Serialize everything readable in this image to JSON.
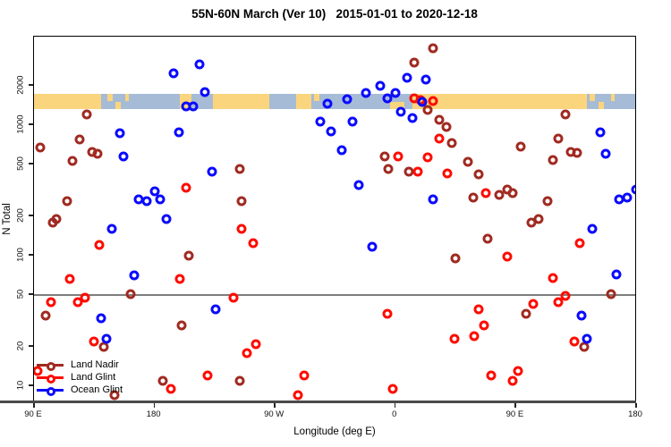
{
  "title": "55N-60N March (Ver 10)   2015-01-01 to 2020-12-18",
  "axes": {
    "x_label": "Longitude (deg E)",
    "y_label": "N Total",
    "x_ticks": [
      {
        "value": 90,
        "label": "90 E"
      },
      {
        "value": 180,
        "label": "180"
      },
      {
        "value": 270,
        "label": "90 W"
      },
      {
        "value": 360,
        "label": "0"
      },
      {
        "value": 450,
        "label": "90 E"
      },
      {
        "value": 540,
        "label": "180"
      }
    ],
    "y_ticks": [
      2000,
      1000,
      500,
      200,
      100,
      50,
      20,
      10
    ],
    "y_scale": "log",
    "x_range": [
      90,
      540
    ]
  },
  "reference_line_y": 50,
  "map_band": {
    "land_color": "#FBD57E",
    "ocean_color": "#A6BBD6",
    "segments": [
      {
        "from": 90,
        "to": 140,
        "type": "land"
      },
      {
        "from": 140,
        "to": 199,
        "type": "ocean"
      },
      {
        "from": 199,
        "to": 208,
        "type": "land"
      },
      {
        "from": 208,
        "to": 224,
        "type": "ocean"
      },
      {
        "from": 224,
        "to": 266,
        "type": "land"
      },
      {
        "from": 266,
        "to": 286,
        "type": "ocean"
      },
      {
        "from": 286,
        "to": 297,
        "type": "land"
      },
      {
        "from": 297,
        "to": 373,
        "type": "ocean"
      },
      {
        "from": 373,
        "to": 503,
        "type": "land"
      },
      {
        "from": 503,
        "to": 540,
        "type": "ocean"
      }
    ],
    "specks": [
      {
        "from": 145,
        "to": 149,
        "type": "land",
        "pos": "top"
      },
      {
        "from": 151,
        "to": 155,
        "type": "land",
        "pos": "bottom"
      },
      {
        "from": 158,
        "to": 161,
        "type": "land",
        "pos": "top"
      },
      {
        "from": 299,
        "to": 303,
        "type": "land",
        "pos": "top"
      },
      {
        "from": 356,
        "to": 367,
        "type": "land",
        "pos": "bottom"
      },
      {
        "from": 505,
        "to": 509,
        "type": "land",
        "pos": "top"
      },
      {
        "from": 512,
        "to": 516,
        "type": "land",
        "pos": "bottom"
      },
      {
        "from": 521,
        "to": 524,
        "type": "land",
        "pos": "top"
      }
    ]
  },
  "legend": [
    {
      "label": "Land Nadir",
      "color": "#A02A21"
    },
    {
      "label": "Land Glint",
      "color": "#FF0B00"
    },
    {
      "label": "Ocean Glint",
      "color": "#0A0AFF"
    }
  ],
  "chart_data": {
    "type": "scatter",
    "x_axis": "Longitude (deg E), wrapped axis from 90E eastward to 180 (values 90-540)",
    "y_axis": "N Total (log scale)",
    "ylim": [
      7.4,
      4800
    ],
    "series": [
      {
        "name": "Land Nadir",
        "color": "#A02A21",
        "points": [
          [
            129.5,
            1200
          ],
          [
            124,
            780
          ],
          [
            95,
            670
          ],
          [
            133.5,
            620
          ],
          [
            137.5,
            600
          ],
          [
            388,
            3900
          ],
          [
            374,
            3000
          ],
          [
            384,
            1300
          ],
          [
            393,
            1100
          ],
          [
            398,
            970
          ],
          [
            402,
            730
          ],
          [
            422,
            420
          ],
          [
            418,
            280
          ],
          [
            438,
            290
          ],
          [
            444,
            320
          ],
          [
            448,
            300
          ],
          [
            474,
            260
          ],
          [
            462,
            180
          ],
          [
            467,
            190
          ],
          [
            355,
            460
          ],
          [
            370,
            440
          ],
          [
            414,
            520
          ],
          [
            352,
            580
          ],
          [
            478,
            540
          ],
          [
            487,
            1200
          ],
          [
            482,
            790
          ],
          [
            454,
            680
          ],
          [
            491,
            620
          ],
          [
            496,
            610
          ],
          [
            119,
            530
          ],
          [
            244,
            460
          ],
          [
            115,
            260
          ],
          [
            104,
            180
          ],
          [
            107,
            190
          ],
          [
            245,
            260
          ],
          [
            206,
            100
          ],
          [
            405,
            96
          ],
          [
            429,
            135
          ],
          [
            162,
            51
          ],
          [
            99,
            35
          ],
          [
            142,
            20
          ],
          [
            200,
            29
          ],
          [
            186,
            11
          ],
          [
            150,
            8.5
          ],
          [
            244,
            11
          ],
          [
            521,
            51
          ],
          [
            458,
            36
          ],
          [
            501,
            20
          ]
        ]
      },
      {
        "name": "Land Glint",
        "color": "#FF0B00",
        "points": [
          [
            374,
            1600
          ],
          [
            379,
            1550
          ],
          [
            388,
            1520
          ],
          [
            393,
            790
          ],
          [
            384,
            570
          ],
          [
            362,
            580
          ],
          [
            204,
            330
          ],
          [
            139,
            120
          ],
          [
            245,
            160
          ],
          [
            254,
            125
          ],
          [
            117,
            66
          ],
          [
            199,
            66
          ],
          [
            377,
            440
          ],
          [
            399,
            430
          ],
          [
            428,
            300
          ],
          [
            498,
            125
          ],
          [
            444,
            98
          ],
          [
            478,
            67
          ],
          [
            103,
            44
          ],
          [
            123,
            44
          ],
          [
            128,
            48
          ],
          [
            239,
            48
          ],
          [
            135,
            22
          ],
          [
            256,
            21
          ],
          [
            249,
            18
          ],
          [
            220,
            12
          ],
          [
            192,
            9.5
          ],
          [
            292,
            12
          ],
          [
            287,
            8.5
          ],
          [
            93,
            13
          ],
          [
            354,
            36
          ],
          [
            422,
            39
          ],
          [
            426,
            29
          ],
          [
            419,
            24
          ],
          [
            404,
            23
          ],
          [
            494,
            22
          ],
          [
            463,
            43
          ],
          [
            482,
            44
          ],
          [
            487,
            49
          ],
          [
            432,
            12
          ],
          [
            452,
            13
          ],
          [
            448,
            11
          ],
          [
            358,
            9.5
          ]
        ]
      },
      {
        "name": "Ocean Glint",
        "color": "#0A0AFF",
        "points": [
          [
            194,
            2500
          ],
          [
            214,
            2900
          ],
          [
            218,
            1800
          ],
          [
            204,
            1400
          ],
          [
            209,
            1400
          ],
          [
            154,
            870
          ],
          [
            198,
            880
          ],
          [
            157,
            580
          ],
          [
            369,
            2300
          ],
          [
            383,
            2250
          ],
          [
            349,
            2000
          ],
          [
            338,
            1760
          ],
          [
            324,
            1570
          ],
          [
            354,
            1600
          ],
          [
            360,
            1760
          ],
          [
            380,
            1500
          ],
          [
            364,
            1260
          ],
          [
            373,
            1140
          ],
          [
            328,
            1070
          ],
          [
            320,
            640
          ],
          [
            304,
            1060
          ],
          [
            312,
            900
          ],
          [
            309,
            1460
          ],
          [
            513,
            880
          ],
          [
            517,
            600
          ],
          [
            223,
            440
          ],
          [
            168,
            270
          ],
          [
            174,
            260
          ],
          [
            180,
            310
          ],
          [
            184,
            270
          ],
          [
            189,
            190
          ],
          [
            148,
            160
          ],
          [
            165,
            71
          ],
          [
            333,
            350
          ],
          [
            388,
            270
          ],
          [
            527,
            270
          ],
          [
            533,
            280
          ],
          [
            540,
            320
          ],
          [
            507,
            160
          ],
          [
            343,
            117
          ],
          [
            525,
            72
          ],
          [
            140,
            33
          ],
          [
            226,
            39
          ],
          [
            144,
            23
          ],
          [
            499,
            35
          ],
          [
            503,
            23
          ]
        ]
      }
    ]
  }
}
